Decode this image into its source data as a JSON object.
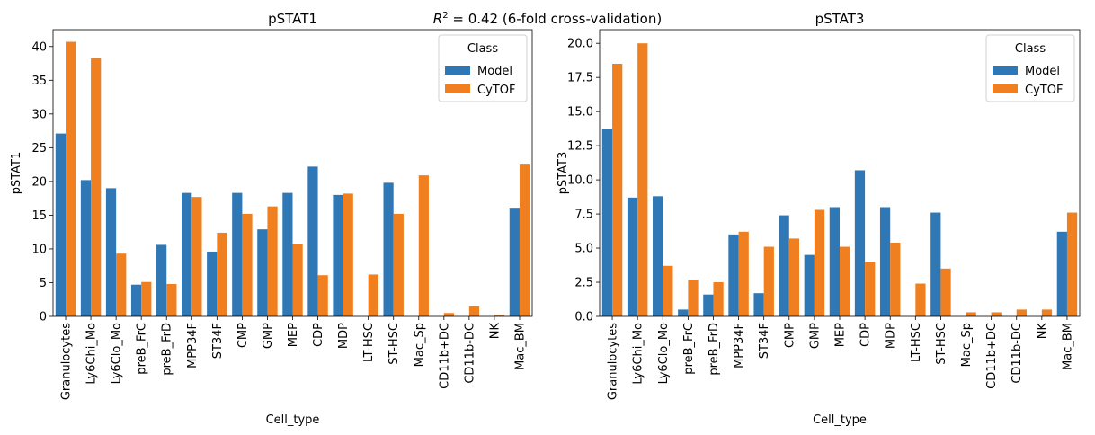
{
  "suptitle": {
    "r": "R",
    "sup": "2",
    "rest": " = 0.42 (6-fold cross-validation)"
  },
  "colors": {
    "Model": "#2f78b5",
    "CyTOF": "#f0801f"
  },
  "chart_data": [
    {
      "type": "bar",
      "title": "pSTAT1",
      "xlabel": "Cell_type",
      "ylabel": "pSTAT1",
      "ylim": [
        0,
        42.5
      ],
      "yticks": [
        0,
        5,
        10,
        15,
        20,
        25,
        30,
        35,
        40
      ],
      "ytick_labels": [
        "0",
        "5",
        "10",
        "15",
        "20",
        "25",
        "30",
        "35",
        "40"
      ],
      "grid": false,
      "legend": {
        "title": "Class",
        "position": "top-right",
        "entries": [
          "Model",
          "CyTOF"
        ]
      },
      "categories": [
        "Granulocytes",
        "Ly6Chi_Mo",
        "Ly6Clo_Mo",
        "preB_FrC",
        "preB_FrD",
        "MPP34F",
        "ST34F",
        "CMP",
        "GMP",
        "MEP",
        "CDP",
        "MDP",
        "LT-HSC",
        "ST-HSC",
        "Mac_Sp",
        "CD11b+DC",
        "CD11b-DC",
        "NK",
        "Mac_BM"
      ],
      "series": [
        {
          "name": "Model",
          "values": [
            27.1,
            20.2,
            19.0,
            4.7,
            10.6,
            18.3,
            9.6,
            18.3,
            12.9,
            18.3,
            22.2,
            18.0,
            0,
            19.8,
            0,
            0,
            0,
            0,
            16.1
          ]
        },
        {
          "name": "CyTOF",
          "values": [
            40.7,
            38.3,
            9.3,
            5.1,
            4.8,
            17.7,
            12.4,
            15.2,
            16.3,
            10.7,
            6.1,
            18.2,
            6.2,
            15.2,
            20.9,
            0.5,
            1.5,
            0.2,
            22.5
          ]
        }
      ]
    },
    {
      "type": "bar",
      "title": "pSTAT3",
      "xlabel": "Cell_type",
      "ylabel": "pSTAT3",
      "ylim": [
        0,
        21.0
      ],
      "yticks": [
        0,
        2.5,
        5,
        7.5,
        10,
        12.5,
        15,
        17.5,
        20
      ],
      "ytick_labels": [
        "0.0",
        "2.5",
        "5.0",
        "7.5",
        "10.0",
        "12.5",
        "15.0",
        "17.5",
        "20.0"
      ],
      "grid": false,
      "legend": {
        "title": "Class",
        "position": "top-right",
        "entries": [
          "Model",
          "CyTOF"
        ]
      },
      "categories": [
        "Granulocytes",
        "Ly6Chi_Mo",
        "Ly6Clo_Mo",
        "preB_FrC",
        "preB_FrD",
        "MPP34F",
        "ST34F",
        "CMP",
        "GMP",
        "MEP",
        "CDP",
        "MDP",
        "LT-HSC",
        "ST-HSC",
        "Mac_Sp",
        "CD11b+DC",
        "CD11b-DC",
        "NK",
        "Mac_BM"
      ],
      "series": [
        {
          "name": "Model",
          "values": [
            13.7,
            8.7,
            8.8,
            0.5,
            1.6,
            6.0,
            1.7,
            7.4,
            4.5,
            8.0,
            10.7,
            8.0,
            0,
            7.6,
            0,
            0,
            0,
            0,
            6.2
          ]
        },
        {
          "name": "CyTOF",
          "values": [
            18.5,
            20.0,
            3.7,
            2.7,
            2.5,
            6.2,
            5.1,
            5.7,
            7.8,
            5.1,
            4.0,
            5.4,
            2.4,
            3.5,
            0.3,
            0.3,
            0.5,
            0.5,
            7.6
          ]
        }
      ]
    }
  ]
}
